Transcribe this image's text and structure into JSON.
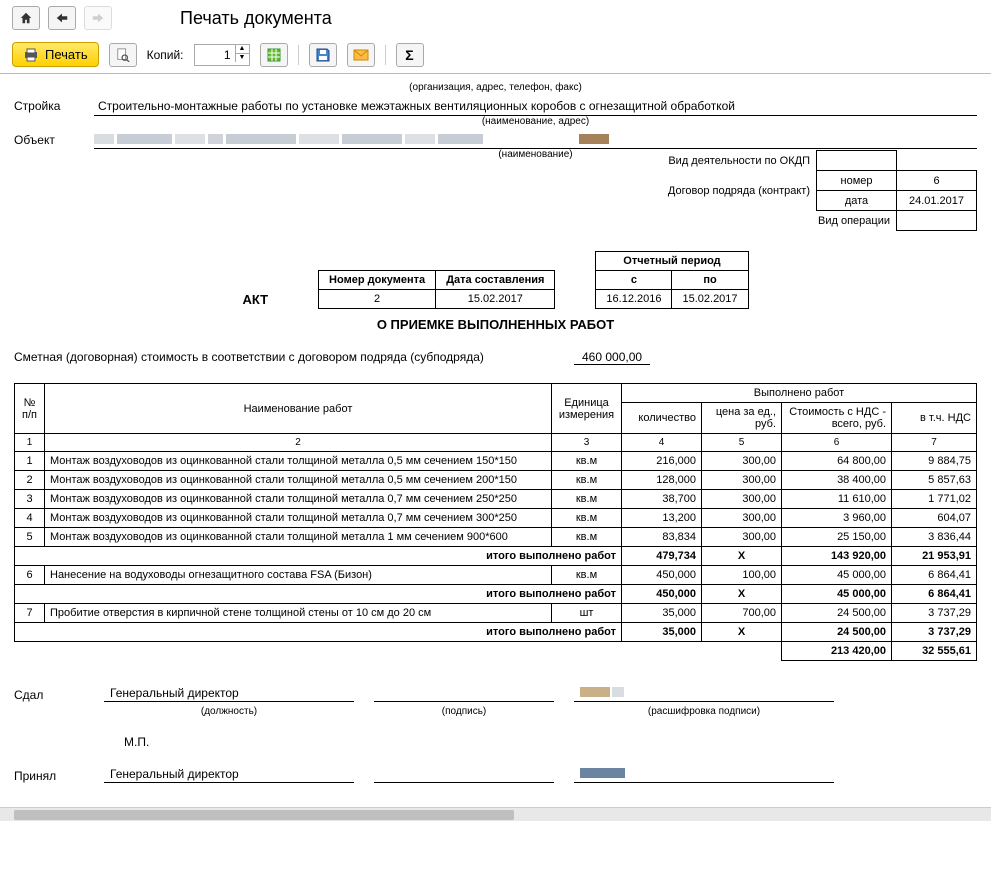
{
  "header": {
    "title": "Печать документа"
  },
  "toolbar": {
    "print": "Печать",
    "copies_label": "Копий:",
    "copies_value": "1"
  },
  "doc": {
    "org_caption": "(организация, адрес, телефон, факс)",
    "stroyka_label": "Стройка",
    "stroyka_value": "Строительно-монтажные работы по установке межэтажных вентиляционных коробов с огнезащитной обработкой",
    "stroyka_hint": "(наименование, адрес)",
    "object_label": "Объект",
    "object_hint": "(наименование)",
    "right": {
      "okdp": "Вид деятельности по ОКДП",
      "contract": "Договор подряда (контракт)",
      "number_label": "номер",
      "number_value": "6",
      "date_label": "дата",
      "date_value": "24.01.2017",
      "operation": "Вид операции"
    },
    "akt": "АКТ",
    "meta": {
      "docnum_label": "Номер документа",
      "docnum": "2",
      "docdate_label": "Дата составления",
      "docdate": "15.02.2017",
      "period_label": "Отчетный период",
      "from_label": "с",
      "from": "16.12.2016",
      "to_label": "по",
      "to": "15.02.2017"
    },
    "subtitle": "О ПРИЕМКЕ ВЫПОЛНЕННЫХ РАБОТ",
    "estimate_label": "Сметная (договорная) стоимость в соответствии с договором подряда (субподряда)",
    "estimate_value": "460 000,00"
  },
  "table": {
    "headers": {
      "num": "№ п/п",
      "name": "Наименование работ",
      "unit": "Единица измерения",
      "done": "Выполнено работ",
      "qty": "количество",
      "price": "цена за ед., руб.",
      "cost": "Стоимость с НДС - всего, руб.",
      "vat": "в т.ч. НДС"
    },
    "colnums": [
      "1",
      "2",
      "3",
      "4",
      "5",
      "6",
      "7"
    ],
    "rows": [
      {
        "n": "1",
        "name": "Монтаж воздуховодов из оцинкованной стали толщиной металла 0,5 мм сечением 150*150",
        "unit": "кв.м",
        "qty": "216,000",
        "price": "300,00",
        "cost": "64 800,00",
        "vat": "9 884,75"
      },
      {
        "n": "2",
        "name": "Монтаж воздуховодов из оцинкованной стали толщиной металла 0,5 мм сечением 200*150",
        "unit": "кв.м",
        "qty": "128,000",
        "price": "300,00",
        "cost": "38 400,00",
        "vat": "5 857,63"
      },
      {
        "n": "3",
        "name": "Монтаж воздуховодов из оцинкованной стали толщиной металла 0,7 мм сечением 250*250",
        "unit": "кв.м",
        "qty": "38,700",
        "price": "300,00",
        "cost": "11 610,00",
        "vat": "1 771,02"
      },
      {
        "n": "4",
        "name": "Монтаж воздуховодов из оцинкованной стали толщиной металла 0,7 мм сечением 300*250",
        "unit": "кв.м",
        "qty": "13,200",
        "price": "300,00",
        "cost": "3 960,00",
        "vat": "604,07"
      },
      {
        "n": "5",
        "name": "Монтаж воздуховодов из оцинкованной стали толщиной металла 1 мм сечением 900*600",
        "unit": "кв.м",
        "qty": "83,834",
        "price": "300,00",
        "cost": "25 150,00",
        "vat": "3 836,44"
      }
    ],
    "subtotal_label": "итого выполнено работ",
    "sub1": {
      "qty": "479,734",
      "price": "Х",
      "cost": "143 920,00",
      "vat": "21 953,91"
    },
    "row6": {
      "n": "6",
      "name": "Нанесение на водуховоды огнезащитного состава FSA (Бизон)",
      "unit": "кв.м",
      "qty": "450,000",
      "price": "100,00",
      "cost": "45 000,00",
      "vat": "6 864,41"
    },
    "sub2": {
      "qty": "450,000",
      "price": "Х",
      "cost": "45 000,00",
      "vat": "6 864,41"
    },
    "row7": {
      "n": "7",
      "name": "Пробитие отверстия в кирпичной стене толщиной стены от 10 см до 20 см",
      "unit": "шт",
      "qty": "35,000",
      "price": "700,00",
      "cost": "24 500,00",
      "vat": "3 737,29"
    },
    "sub3": {
      "qty": "35,000",
      "price": "Х",
      "cost": "24 500,00",
      "vat": "3 737,29"
    },
    "total": {
      "cost": "213 420,00",
      "vat": "32 555,61"
    }
  },
  "sign": {
    "sdal": "Сдал",
    "prinyal": "Принял",
    "position": "Генеральный директор",
    "hint_pos": "(должность)",
    "hint_sig": "(подпись)",
    "hint_dec": "(расшифровка подписи)",
    "mp": "М.П."
  }
}
